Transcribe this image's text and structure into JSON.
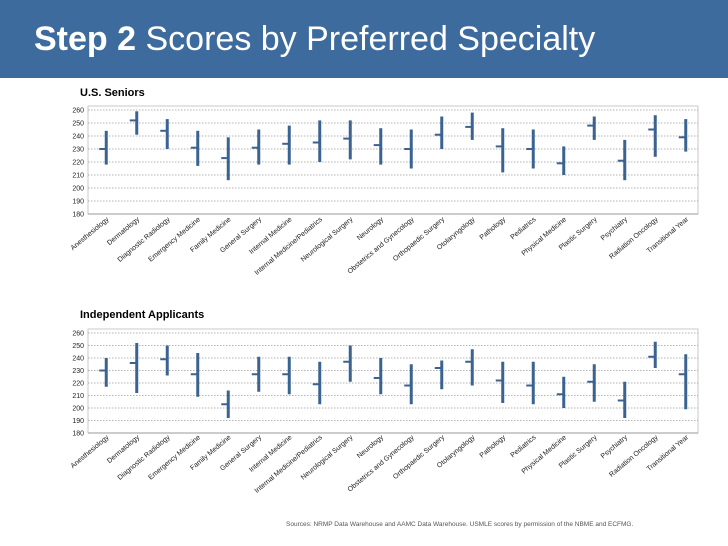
{
  "title": {
    "bold": "Step 2",
    "rest": "Scores by Preferred Specialty"
  },
  "source": "Sources: NRMP Data Warehouse and AAMC Data Warehouse.  USMLE scores by permission of the NBME and ECFMG.",
  "colors": {
    "title_bar": "#3d6b9e",
    "bars": "#3b6391"
  },
  "chart_data": [
    {
      "type": "range",
      "title": "U.S. Seniors",
      "ylim": [
        180,
        260
      ],
      "yticks": [
        180,
        190,
        200,
        210,
        220,
        230,
        240,
        250,
        260
      ],
      "categories": [
        "Anesthesiology",
        "Dermatology",
        "Diagnostic Radiology",
        "Emergency Medicine",
        "Family Medicine",
        "General Surgery",
        "Internal Medicine",
        "Internal Medicine/Pediatrics",
        "Neurological Surgery",
        "Neurology",
        "Obstetrics and Gynecology",
        "Orthopaedic Surgery",
        "Otolaryngology",
        "Pathology",
        "Pediatrics",
        "Physical Medicine",
        "Plastic Surgery",
        "Psychiatry",
        "Radiation Oncology",
        "Transitional Year"
      ],
      "series": [
        {
          "low": [
            218,
            241,
            230,
            217,
            206,
            218,
            218,
            220,
            222,
            218,
            215,
            230,
            237,
            212,
            215,
            210,
            237,
            206,
            224,
            228
          ]
        },
        {
          "high": [
            244,
            259,
            253,
            244,
            239,
            245,
            248,
            252,
            252,
            246,
            245,
            255,
            258,
            246,
            245,
            232,
            255,
            237,
            256,
            253
          ]
        },
        {
          "mean": [
            230,
            252,
            244,
            231,
            223,
            231,
            234,
            235,
            238,
            233,
            230,
            241,
            247,
            232,
            230,
            219,
            248,
            221,
            245,
            239
          ]
        }
      ]
    },
    {
      "type": "range",
      "title": "Independent Applicants",
      "ylim": [
        180,
        260
      ],
      "yticks": [
        180,
        190,
        200,
        210,
        220,
        230,
        240,
        250,
        260
      ],
      "categories": [
        "Anesthesiology",
        "Dermatology",
        "Diagnostic Radiology",
        "Emergency Medicine",
        "Family Medicine",
        "General Surgery",
        "Internal Medicine",
        "Internal Medicine/Pediatrics",
        "Neurological Surgery",
        "Neurology",
        "Obstetrics and Gynecology",
        "Orthopaedic Surgery",
        "Otolaryngology",
        "Pathology",
        "Pediatrics",
        "Physical Medicine",
        "Plastic Surgery",
        "Psychiatry",
        "Radiation Oncology",
        "Transitional Year"
      ],
      "series": [
        {
          "low": [
            217,
            212,
            226,
            209,
            192,
            213,
            211,
            203,
            221,
            211,
            203,
            215,
            218,
            204,
            203,
            200,
            205,
            192,
            232,
            199
          ]
        },
        {
          "high": [
            240,
            252,
            250,
            244,
            214,
            241,
            241,
            237,
            250,
            240,
            235,
            238,
            247,
            237,
            237,
            225,
            235,
            221,
            253,
            243
          ]
        },
        {
          "mean": [
            230,
            236,
            239,
            227,
            203,
            227,
            227,
            219,
            237,
            224,
            218,
            232,
            237,
            222,
            218,
            211,
            221,
            206,
            241,
            227
          ]
        }
      ]
    }
  ]
}
